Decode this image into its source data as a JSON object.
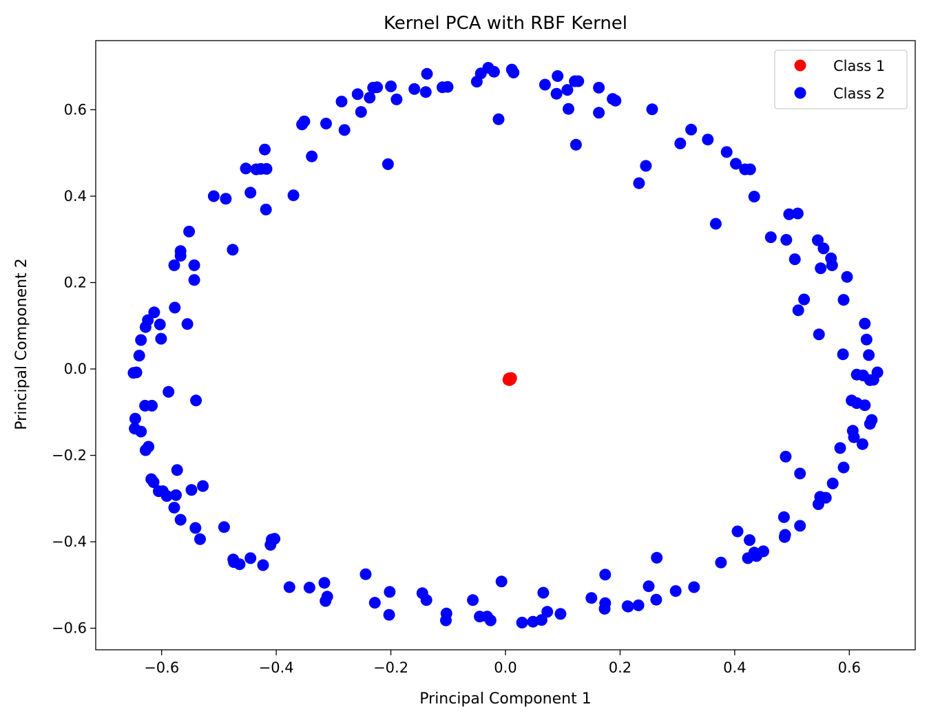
{
  "chart_data": {
    "type": "scatter",
    "title": "Kernel PCA with RBF Kernel",
    "xlabel": "Principal Component 1",
    "ylabel": "Principal Component 2",
    "xlim": [
      -0.715,
      0.715
    ],
    "ylim": [
      -0.65,
      0.76
    ],
    "x_ticks": [
      -0.6,
      -0.4,
      -0.2,
      0.0,
      0.2,
      0.4,
      0.6
    ],
    "x_tick_labels": [
      "−0.6",
      "−0.4",
      "−0.2",
      "0.0",
      "0.2",
      "0.4",
      "0.6"
    ],
    "y_ticks": [
      -0.6,
      -0.4,
      -0.2,
      0.0,
      0.2,
      0.4,
      0.6
    ],
    "y_tick_labels": [
      "−0.6",
      "−0.4",
      "−0.2",
      "0.0",
      "0.2",
      "0.4",
      "0.6"
    ],
    "grid": false,
    "legend_position": "top-right",
    "series": [
      {
        "name": "Class 1",
        "color": "#ff0000",
        "points": [
          [
            0.006,
            -0.022
          ],
          [
            0.009,
            -0.024
          ],
          [
            0.007,
            -0.026
          ],
          [
            0.01,
            -0.021
          ],
          [
            0.005,
            -0.025
          ]
        ]
      },
      {
        "name": "Class 2",
        "color": "#0000ff",
        "points": [
          [
            -0.649,
            -0.009
          ],
          [
            -0.644,
            -0.008
          ],
          [
            -0.639,
            0.031
          ],
          [
            -0.636,
            0.067
          ],
          [
            -0.628,
            0.097
          ],
          [
            -0.624,
            0.113
          ],
          [
            -0.613,
            0.131
          ],
          [
            -0.603,
            0.103
          ],
          [
            -0.601,
            0.07
          ],
          [
            -0.588,
            -0.053
          ],
          [
            -0.629,
            -0.085
          ],
          [
            -0.617,
            -0.085
          ],
          [
            -0.646,
            -0.115
          ],
          [
            -0.647,
            -0.138
          ],
          [
            -0.636,
            -0.145
          ],
          [
            -0.628,
            -0.188
          ],
          [
            -0.623,
            -0.18
          ],
          [
            -0.618,
            -0.255
          ],
          [
            -0.614,
            -0.262
          ],
          [
            -0.605,
            -0.283
          ],
          [
            -0.598,
            -0.283
          ],
          [
            -0.591,
            -0.294
          ],
          [
            -0.578,
            -0.321
          ],
          [
            -0.575,
            -0.292
          ],
          [
            -0.573,
            -0.234
          ],
          [
            -0.567,
            -0.349
          ],
          [
            -0.548,
            -0.28
          ],
          [
            -0.541,
            -0.368
          ],
          [
            -0.533,
            -0.394
          ],
          [
            -0.528,
            -0.271
          ],
          [
            -0.54,
            -0.073
          ],
          [
            -0.555,
            0.104
          ],
          [
            -0.577,
            0.142
          ],
          [
            -0.578,
            0.24
          ],
          [
            -0.567,
            0.262
          ],
          [
            -0.567,
            0.273
          ],
          [
            -0.552,
            0.318
          ],
          [
            -0.543,
            0.24
          ],
          [
            -0.543,
            0.206
          ],
          [
            -0.509,
            0.4
          ],
          [
            -0.488,
            0.394
          ],
          [
            -0.476,
            0.276
          ],
          [
            -0.445,
            0.408
          ],
          [
            -0.453,
            0.464
          ],
          [
            -0.435,
            0.462
          ],
          [
            -0.427,
            0.463
          ],
          [
            -0.417,
            0.463
          ],
          [
            -0.42,
            0.508
          ],
          [
            -0.418,
            0.369
          ],
          [
            -0.37,
            0.402
          ],
          [
            -0.355,
            0.566
          ],
          [
            -0.351,
            0.573
          ],
          [
            -0.338,
            0.492
          ],
          [
            -0.313,
            0.568
          ],
          [
            -0.286,
            0.619
          ],
          [
            -0.281,
            0.553
          ],
          [
            -0.258,
            0.636
          ],
          [
            -0.252,
            0.595
          ],
          [
            -0.237,
            0.628
          ],
          [
            -0.231,
            0.651
          ],
          [
            -0.224,
            0.652
          ],
          [
            -0.205,
            0.474
          ],
          [
            -0.2,
            0.654
          ],
          [
            -0.19,
            0.624
          ],
          [
            -0.159,
            0.648
          ],
          [
            -0.139,
            0.641
          ],
          [
            -0.137,
            0.683
          ],
          [
            -0.11,
            0.652
          ],
          [
            -0.101,
            0.653
          ],
          [
            -0.05,
            0.665
          ],
          [
            -0.043,
            0.684
          ],
          [
            -0.03,
            0.697
          ],
          [
            -0.02,
            0.688
          ],
          [
            -0.012,
            0.578
          ],
          [
            0.011,
            0.693
          ],
          [
            0.014,
            0.686
          ],
          [
            0.069,
            0.658
          ],
          [
            0.089,
            0.637
          ],
          [
            0.091,
            0.678
          ],
          [
            0.108,
            0.646
          ],
          [
            0.11,
            0.602
          ],
          [
            0.121,
            0.666
          ],
          [
            0.123,
            0.519
          ],
          [
            0.127,
            0.666
          ],
          [
            0.163,
            0.651
          ],
          [
            0.163,
            0.593
          ],
          [
            0.187,
            0.625
          ],
          [
            0.192,
            0.621
          ],
          [
            0.233,
            0.43
          ],
          [
            0.245,
            0.47
          ],
          [
            0.256,
            0.601
          ],
          [
            0.305,
            0.522
          ],
          [
            0.324,
            0.554
          ],
          [
            0.353,
            0.531
          ],
          [
            0.367,
            0.336
          ],
          [
            0.386,
            0.502
          ],
          [
            0.402,
            0.475
          ],
          [
            0.418,
            0.462
          ],
          [
            0.427,
            0.462
          ],
          [
            0.434,
            0.399
          ],
          [
            0.463,
            0.305
          ],
          [
            0.49,
            0.299
          ],
          [
            0.495,
            0.358
          ],
          [
            0.505,
            0.254
          ],
          [
            0.51,
            0.36
          ],
          [
            0.511,
            0.136
          ],
          [
            0.521,
            0.161
          ],
          [
            0.545,
            0.298
          ],
          [
            0.547,
            0.08
          ],
          [
            0.55,
            0.233
          ],
          [
            0.555,
            0.279
          ],
          [
            0.568,
            0.256
          ],
          [
            0.57,
            0.24
          ],
          [
            0.589,
            0.034
          ],
          [
            0.59,
            0.16
          ],
          [
            0.596,
            0.213
          ],
          [
            0.627,
            0.105
          ],
          [
            0.63,
            0.068
          ],
          [
            0.634,
            0.032
          ],
          [
            0.613,
            -0.013
          ],
          [
            0.624,
            -0.015
          ],
          [
            0.636,
            -0.026
          ],
          [
            0.642,
            -0.025
          ],
          [
            0.649,
            -0.008
          ],
          [
            0.604,
            -0.073
          ],
          [
            0.613,
            -0.079
          ],
          [
            0.627,
            -0.084
          ],
          [
            0.639,
            -0.118
          ],
          [
            0.636,
            -0.127
          ],
          [
            0.606,
            -0.143
          ],
          [
            0.608,
            -0.158
          ],
          [
            0.623,
            -0.174
          ],
          [
            0.584,
            -0.183
          ],
          [
            0.59,
            -0.228
          ],
          [
            0.571,
            -0.265
          ],
          [
            0.549,
            -0.296
          ],
          [
            0.559,
            -0.298
          ],
          [
            0.546,
            -0.313
          ],
          [
            0.489,
            -0.203
          ],
          [
            0.514,
            -0.242
          ],
          [
            0.486,
            -0.343
          ],
          [
            0.514,
            -0.363
          ],
          [
            0.488,
            -0.384
          ],
          [
            0.487,
            -0.389
          ],
          [
            0.45,
            -0.422
          ],
          [
            0.434,
            -0.425
          ],
          [
            0.438,
            -0.433
          ],
          [
            0.426,
            -0.396
          ],
          [
            0.405,
            -0.376
          ],
          [
            0.423,
            -0.438
          ],
          [
            0.376,
            -0.448
          ],
          [
            0.329,
            -0.505
          ],
          [
            0.297,
            -0.514
          ],
          [
            0.264,
            -0.437
          ],
          [
            0.263,
            -0.534
          ],
          [
            0.25,
            -0.503
          ],
          [
            0.232,
            -0.547
          ],
          [
            0.214,
            -0.55
          ],
          [
            0.213,
            -0.549
          ],
          [
            0.174,
            -0.476
          ],
          [
            0.174,
            -0.542
          ],
          [
            0.173,
            -0.555
          ],
          [
            0.15,
            -0.53
          ],
          [
            0.096,
            -0.567
          ],
          [
            0.073,
            -0.562
          ],
          [
            0.066,
            -0.518
          ],
          [
            0.063,
            -0.581
          ],
          [
            0.048,
            -0.585
          ],
          [
            0.029,
            -0.587
          ],
          [
            -0.007,
            -0.492
          ],
          [
            -0.026,
            -0.582
          ],
          [
            -0.032,
            -0.573
          ],
          [
            -0.045,
            -0.573
          ],
          [
            -0.057,
            -0.535
          ],
          [
            -0.103,
            -0.566
          ],
          [
            -0.104,
            -0.582
          ],
          [
            -0.138,
            -0.535
          ],
          [
            -0.145,
            -0.519
          ],
          [
            -0.202,
            -0.516
          ],
          [
            -0.203,
            -0.569
          ],
          [
            -0.228,
            -0.541
          ],
          [
            -0.244,
            -0.475
          ],
          [
            -0.311,
            -0.527
          ],
          [
            -0.314,
            -0.537
          ],
          [
            -0.316,
            -0.495
          ],
          [
            -0.342,
            -0.506
          ],
          [
            -0.377,
            -0.505
          ],
          [
            -0.403,
            -0.393
          ],
          [
            -0.41,
            -0.407
          ],
          [
            -0.408,
            -0.395
          ],
          [
            -0.423,
            -0.454
          ],
          [
            -0.445,
            -0.438
          ],
          [
            -0.464,
            -0.452
          ],
          [
            -0.474,
            -0.447
          ],
          [
            -0.475,
            -0.441
          ],
          [
            -0.491,
            -0.366
          ]
        ]
      }
    ]
  }
}
